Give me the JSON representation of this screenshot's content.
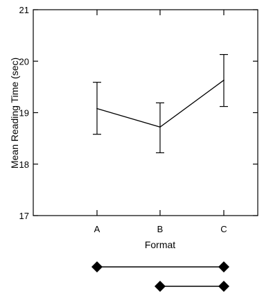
{
  "chart_data": {
    "type": "line",
    "title": "",
    "xlabel": "Format",
    "ylabel": "Mean Reading Time (sec)",
    "categories": [
      "A",
      "B",
      "C"
    ],
    "ylim": [
      17,
      21
    ],
    "yticks": [
      "17",
      "18",
      "19",
      "20",
      "21"
    ],
    "grid": false,
    "series": [
      {
        "values": [
          19.08,
          18.72,
          19.63
        ],
        "error_low": [
          18.58,
          18.22,
          19.12
        ],
        "error_high": [
          19.59,
          19.19,
          20.13
        ]
      }
    ],
    "comparison_lines": [
      {
        "from": "A",
        "to": "C"
      },
      {
        "from": "B",
        "to": "C"
      }
    ],
    "colors": {
      "line": "#000000",
      "background": "#ffffff"
    }
  }
}
